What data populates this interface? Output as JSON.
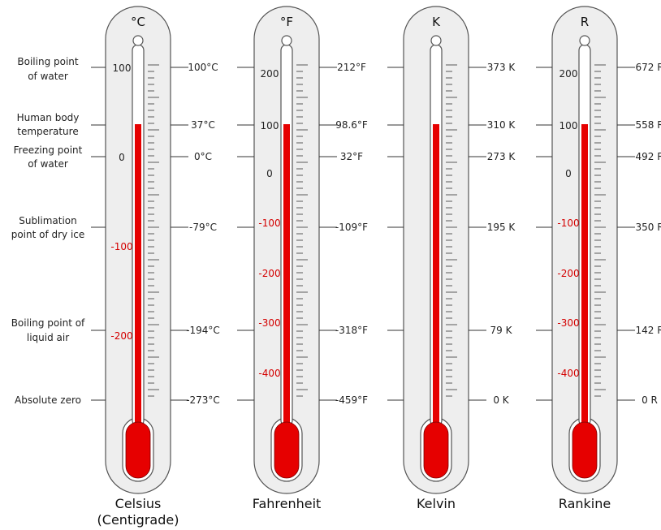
{
  "colors": {
    "mercury": "#e60000",
    "mercury_stroke": "#7a0000",
    "case_fill": "#eeeeee",
    "case_stroke": "#555555",
    "line": "#333333",
    "negative_text": "#d40000",
    "text": "#222222"
  },
  "reference_labels": [
    {
      "lines": [
        "Boiling point",
        "of water"
      ]
    },
    {
      "lines": [
        "Human body",
        "temperature"
      ]
    },
    {
      "lines": [
        "Freezing point",
        "of water"
      ]
    },
    {
      "lines": [
        "Sublimation",
        "point of dry ice"
      ]
    },
    {
      "lines": [
        "Boiling point of",
        "liquid air"
      ]
    },
    {
      "lines": [
        "Absolute zero"
      ]
    }
  ],
  "scales": [
    {
      "symbol": "°C",
      "name_lines": [
        "Celsius",
        "(Centigrade)"
      ],
      "ticks": [
        {
          "text": "100",
          "color": "normal"
        },
        {
          "text": "0",
          "color": "normal"
        },
        {
          "text": "-100",
          "color": "negative"
        },
        {
          "text": "-200",
          "color": "negative"
        }
      ],
      "readings": [
        "100°C",
        "37°C",
        "0°C",
        "-79°C",
        "-194°C",
        "-273°C"
      ]
    },
    {
      "symbol": "°F",
      "name_lines": [
        "Fahrenheit"
      ],
      "ticks": [
        {
          "text": "200",
          "color": "normal"
        },
        {
          "text": "100",
          "color": "normal"
        },
        {
          "text": "0",
          "color": "normal"
        },
        {
          "text": "-100",
          "color": "negative"
        },
        {
          "text": "-200",
          "color": "negative"
        },
        {
          "text": "-300",
          "color": "negative"
        },
        {
          "text": "-400",
          "color": "negative"
        }
      ],
      "readings": [
        "212°F",
        "98.6°F",
        "32°F",
        "-109°F",
        "-318°F",
        "-459°F"
      ]
    },
    {
      "symbol": "K",
      "name_lines": [
        "Kelvin"
      ],
      "ticks": [],
      "readings": [
        "373 K",
        "310 K",
        "273 K",
        "195 K",
        "79 K",
        "0 K"
      ]
    },
    {
      "symbol": "R",
      "name_lines": [
        "Rankine"
      ],
      "ticks": [
        {
          "text": "200",
          "color": "normal"
        },
        {
          "text": "100",
          "color": "normal"
        },
        {
          "text": "0",
          "color": "normal"
        },
        {
          "text": "-100",
          "color": "negative"
        },
        {
          "text": "-200",
          "color": "negative"
        },
        {
          "text": "-300",
          "color": "negative"
        },
        {
          "text": "-400",
          "color": "negative"
        }
      ],
      "readings": [
        "672 R",
        "558 R",
        "492 R",
        "350 R",
        "142 R",
        "0 R"
      ]
    }
  ]
}
